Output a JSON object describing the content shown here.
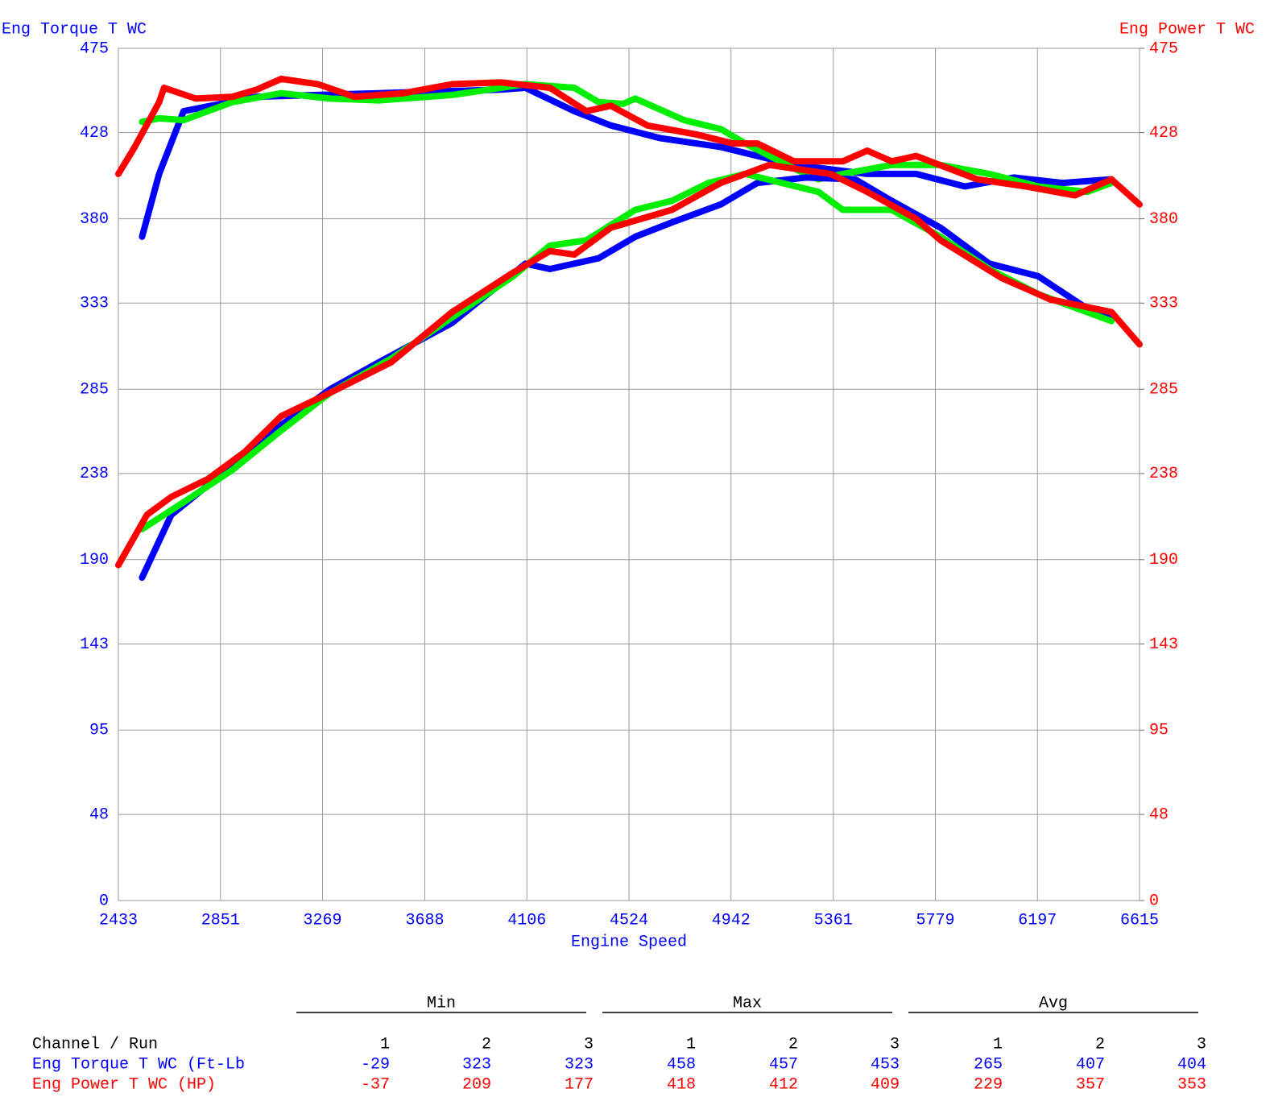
{
  "chart_data": {
    "type": "line",
    "ylabel": "Eng Torque T WC",
    "y2label": "Eng Power T WC",
    "xlabel": "Engine Speed",
    "xlim": [
      2433,
      6615
    ],
    "xticks": [
      2433,
      2851,
      3269,
      3688,
      4106,
      4524,
      4942,
      5361,
      5779,
      6197,
      6615
    ],
    "ylim": [
      0,
      475
    ],
    "yticks": [
      0,
      48,
      95,
      143,
      190,
      238,
      285,
      333,
      380,
      428,
      475
    ],
    "y2lim": [
      0,
      475
    ],
    "y2ticks": [
      0,
      48,
      95,
      143,
      190,
      238,
      285,
      333,
      380,
      428,
      475
    ],
    "grid": true,
    "series": [
      {
        "name": "Eng Torque T WC (Ft-Lb",
        "color": "#0000ff",
        "x": [
          2530,
          2600,
          2700,
          3000,
          3500,
          4000,
          4100,
          4300,
          4450,
          4650,
          4900,
          5200,
          5500,
          5700,
          5900,
          6100,
          6300,
          6500
        ],
        "values": [
          370,
          405,
          440,
          448,
          450,
          452,
          453,
          440,
          432,
          425,
          420,
          410,
          405,
          405,
          398,
          403,
          400,
          402
        ]
      },
      {
        "name": "Eng Torque T WC (Ft-Lb",
        "color": "#00ee00",
        "x": [
          2530,
          2600,
          2700,
          2900,
          3100,
          3300,
          3500,
          3800,
          4100,
          4300,
          4400,
          4500,
          4550,
          4750,
          4900,
          5000,
          5200,
          5300,
          5400,
          5600,
          5800,
          6000,
          6200,
          6400,
          6500
        ],
        "values": [
          434,
          436,
          435,
          445,
          450,
          447,
          446,
          449,
          455,
          453,
          445,
          444,
          447,
          435,
          430,
          422,
          408,
          402,
          405,
          410,
          410,
          405,
          398,
          395,
          400
        ]
      },
      {
        "name": "Eng Torque T WC (Ft-Lb",
        "color": "#ff0000",
        "x": [
          2433,
          2500,
          2600,
          2620,
          2750,
          2900,
          3000,
          3100,
          3250,
          3400,
          3600,
          3800,
          4000,
          4200,
          4350,
          4450,
          4600,
          4800,
          4950,
          5050,
          5200,
          5400,
          5500,
          5600,
          5700,
          5950,
          6150,
          6350,
          6500,
          6615
        ],
        "values": [
          405,
          420,
          445,
          453,
          447,
          448,
          452,
          458,
          455,
          448,
          450,
          455,
          456,
          453,
          440,
          443,
          432,
          427,
          422,
          422,
          412,
          412,
          418,
          412,
          415,
          402,
          398,
          393,
          402,
          388
        ]
      },
      {
        "name": "Eng Power T WC (HP)",
        "color": "#0000ff",
        "axis": "y2",
        "x": [
          2530,
          2650,
          2850,
          3100,
          3300,
          3500,
          3800,
          4100,
          4200,
          4400,
          4550,
          4700,
          4900,
          5050,
          5250,
          5450,
          5600,
          5800,
          6000,
          6200,
          6400,
          6500
        ],
        "values": [
          180,
          215,
          237,
          265,
          285,
          300,
          322,
          355,
          352,
          358,
          370,
          378,
          388,
          400,
          403,
          402,
          390,
          375,
          355,
          348,
          330,
          325
        ]
      },
      {
        "name": "Eng Power T WC (HP)",
        "color": "#00ee00",
        "axis": "y2",
        "x": [
          2530,
          2700,
          2900,
          3100,
          3300,
          3550,
          3800,
          4050,
          4200,
          4350,
          4550,
          4700,
          4850,
          5000,
          5150,
          5300,
          5400,
          5600,
          5800,
          6000,
          6200,
          6500
        ],
        "values": [
          207,
          222,
          240,
          262,
          283,
          302,
          325,
          348,
          365,
          368,
          385,
          390,
          400,
          405,
          400,
          395,
          385,
          385,
          370,
          352,
          338,
          323
        ]
      },
      {
        "name": "Eng Power T WC (HP)",
        "color": "#ff0000",
        "axis": "y2",
        "x": [
          2433,
          2550,
          2650,
          2800,
          2950,
          3100,
          3300,
          3550,
          3800,
          4050,
          4200,
          4300,
          4450,
          4700,
          4900,
          5100,
          5350,
          5500,
          5700,
          5800,
          6050,
          6250,
          6500,
          6615
        ],
        "values": [
          187,
          215,
          225,
          235,
          250,
          270,
          283,
          300,
          328,
          350,
          362,
          360,
          375,
          385,
          400,
          410,
          405,
          395,
          380,
          368,
          347,
          335,
          328,
          310
        ]
      }
    ]
  },
  "table": {
    "groups": [
      "Min",
      "Max",
      "Avg"
    ],
    "corner": "Channel / Run",
    "runs": [
      1,
      2,
      3,
      1,
      2,
      3,
      1,
      2,
      3
    ],
    "rows": [
      {
        "name": "Eng Torque T WC (Ft-Lb",
        "values": [
          -29,
          323,
          323,
          458,
          457,
          453,
          265,
          407,
          404
        ]
      },
      {
        "name": "Eng Power T WC (HP)",
        "values": [
          -37,
          209,
          177,
          418,
          412,
          409,
          229,
          357,
          353
        ]
      }
    ]
  }
}
